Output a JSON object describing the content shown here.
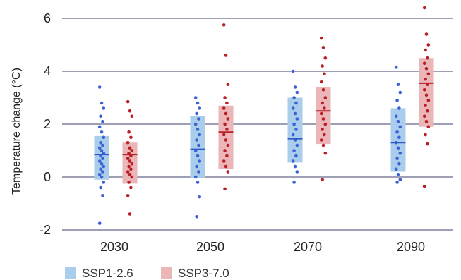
{
  "chart_data": {
    "type": "scatter",
    "title": "",
    "xlabel": "",
    "ylabel": "Temperature change (°C)",
    "ylim": [
      -2,
      6
    ],
    "yticks": [
      -2,
      0,
      2,
      4,
      6
    ],
    "categories": [
      "2030",
      "2050",
      "2070",
      "2090"
    ],
    "grid": true,
    "legend_position": "bottom-left",
    "series": [
      {
        "name": "SSP1-2.6",
        "box_color": "#a9cdeb",
        "point_color": "#3a62d6",
        "median_color": "#2f58c8",
        "groups": [
          {
            "box_low": -0.1,
            "box_high": 1.55,
            "median": 0.85,
            "points": [
              3.4,
              2.8,
              2.6,
              2.3,
              2.1,
              1.9,
              1.7,
              1.5,
              1.3,
              1.2,
              1.1,
              1.0,
              0.9,
              0.8,
              0.7,
              0.6,
              0.5,
              0.4,
              0.3,
              0.2,
              0.1,
              0.0,
              -0.2,
              -0.4,
              -0.7,
              -1.75
            ]
          },
          {
            "box_low": -0.05,
            "box_high": 2.3,
            "median": 1.05,
            "points": [
              3.0,
              2.8,
              2.6,
              2.4,
              2.2,
              2.0,
              1.8,
              1.6,
              1.4,
              1.2,
              1.0,
              0.8,
              0.6,
              0.4,
              0.2,
              0.0,
              -0.2,
              -0.75,
              -1.5
            ]
          },
          {
            "box_low": 0.55,
            "box_high": 3.0,
            "median": 1.45,
            "points": [
              4.0,
              3.4,
              3.2,
              3.0,
              2.8,
              2.6,
              2.4,
              2.2,
              2.0,
              1.8,
              1.6,
              1.4,
              1.2,
              1.0,
              0.8,
              0.6,
              0.4,
              0.2,
              -0.2
            ]
          },
          {
            "box_low": 0.2,
            "box_high": 2.6,
            "median": 1.3,
            "points": [
              4.15,
              3.5,
              3.2,
              2.9,
              2.6,
              2.3,
              2.1,
              1.9,
              1.7,
              1.5,
              1.3,
              1.1,
              0.9,
              0.7,
              0.5,
              0.3,
              0.1,
              -0.1,
              -0.2
            ]
          }
        ]
      },
      {
        "name": "SSP3-7.0",
        "box_color": "#eab6b8",
        "point_color": "#b81e24",
        "median_color": "#b81e24",
        "groups": [
          {
            "box_low": -0.25,
            "box_high": 1.3,
            "median": 0.85,
            "points": [
              2.85,
              2.5,
              2.3,
              1.7,
              1.5,
              1.3,
              1.1,
              1.0,
              0.9,
              0.8,
              0.7,
              0.6,
              0.5,
              0.4,
              0.3,
              0.2,
              0.1,
              0.0,
              -0.2,
              -0.4,
              -0.7,
              -1.4
            ]
          },
          {
            "box_low": 0.3,
            "box_high": 2.7,
            "median": 1.7,
            "points": [
              5.75,
              4.6,
              3.5,
              3.0,
              2.8,
              2.6,
              2.4,
              2.2,
              2.0,
              1.8,
              1.6,
              1.4,
              1.2,
              1.0,
              0.8,
              0.6,
              0.4,
              0.2,
              -0.45
            ]
          },
          {
            "box_low": 1.25,
            "box_high": 3.4,
            "median": 2.5,
            "points": [
              5.25,
              4.9,
              4.5,
              4.2,
              3.9,
              3.6,
              3.3,
              3.0,
              2.8,
              2.6,
              2.4,
              2.2,
              2.0,
              1.8,
              1.6,
              1.4,
              1.2,
              0.9,
              -0.1
            ]
          },
          {
            "box_low": 1.9,
            "box_high": 4.5,
            "median": 3.55,
            "points": [
              6.4,
              5.4,
              5.0,
              4.8,
              4.5,
              4.3,
              4.1,
              3.9,
              3.7,
              3.5,
              3.3,
              3.1,
              2.9,
              2.7,
              2.5,
              2.3,
              2.1,
              1.9,
              1.6,
              1.25,
              -0.35
            ]
          }
        ]
      }
    ],
    "legend": [
      {
        "label": "SSP1-2.6",
        "color": "#a9cdeb"
      },
      {
        "label": "SSP3-7.0",
        "color": "#eab6b8"
      }
    ],
    "gridline_color": "#3f3f6e"
  }
}
